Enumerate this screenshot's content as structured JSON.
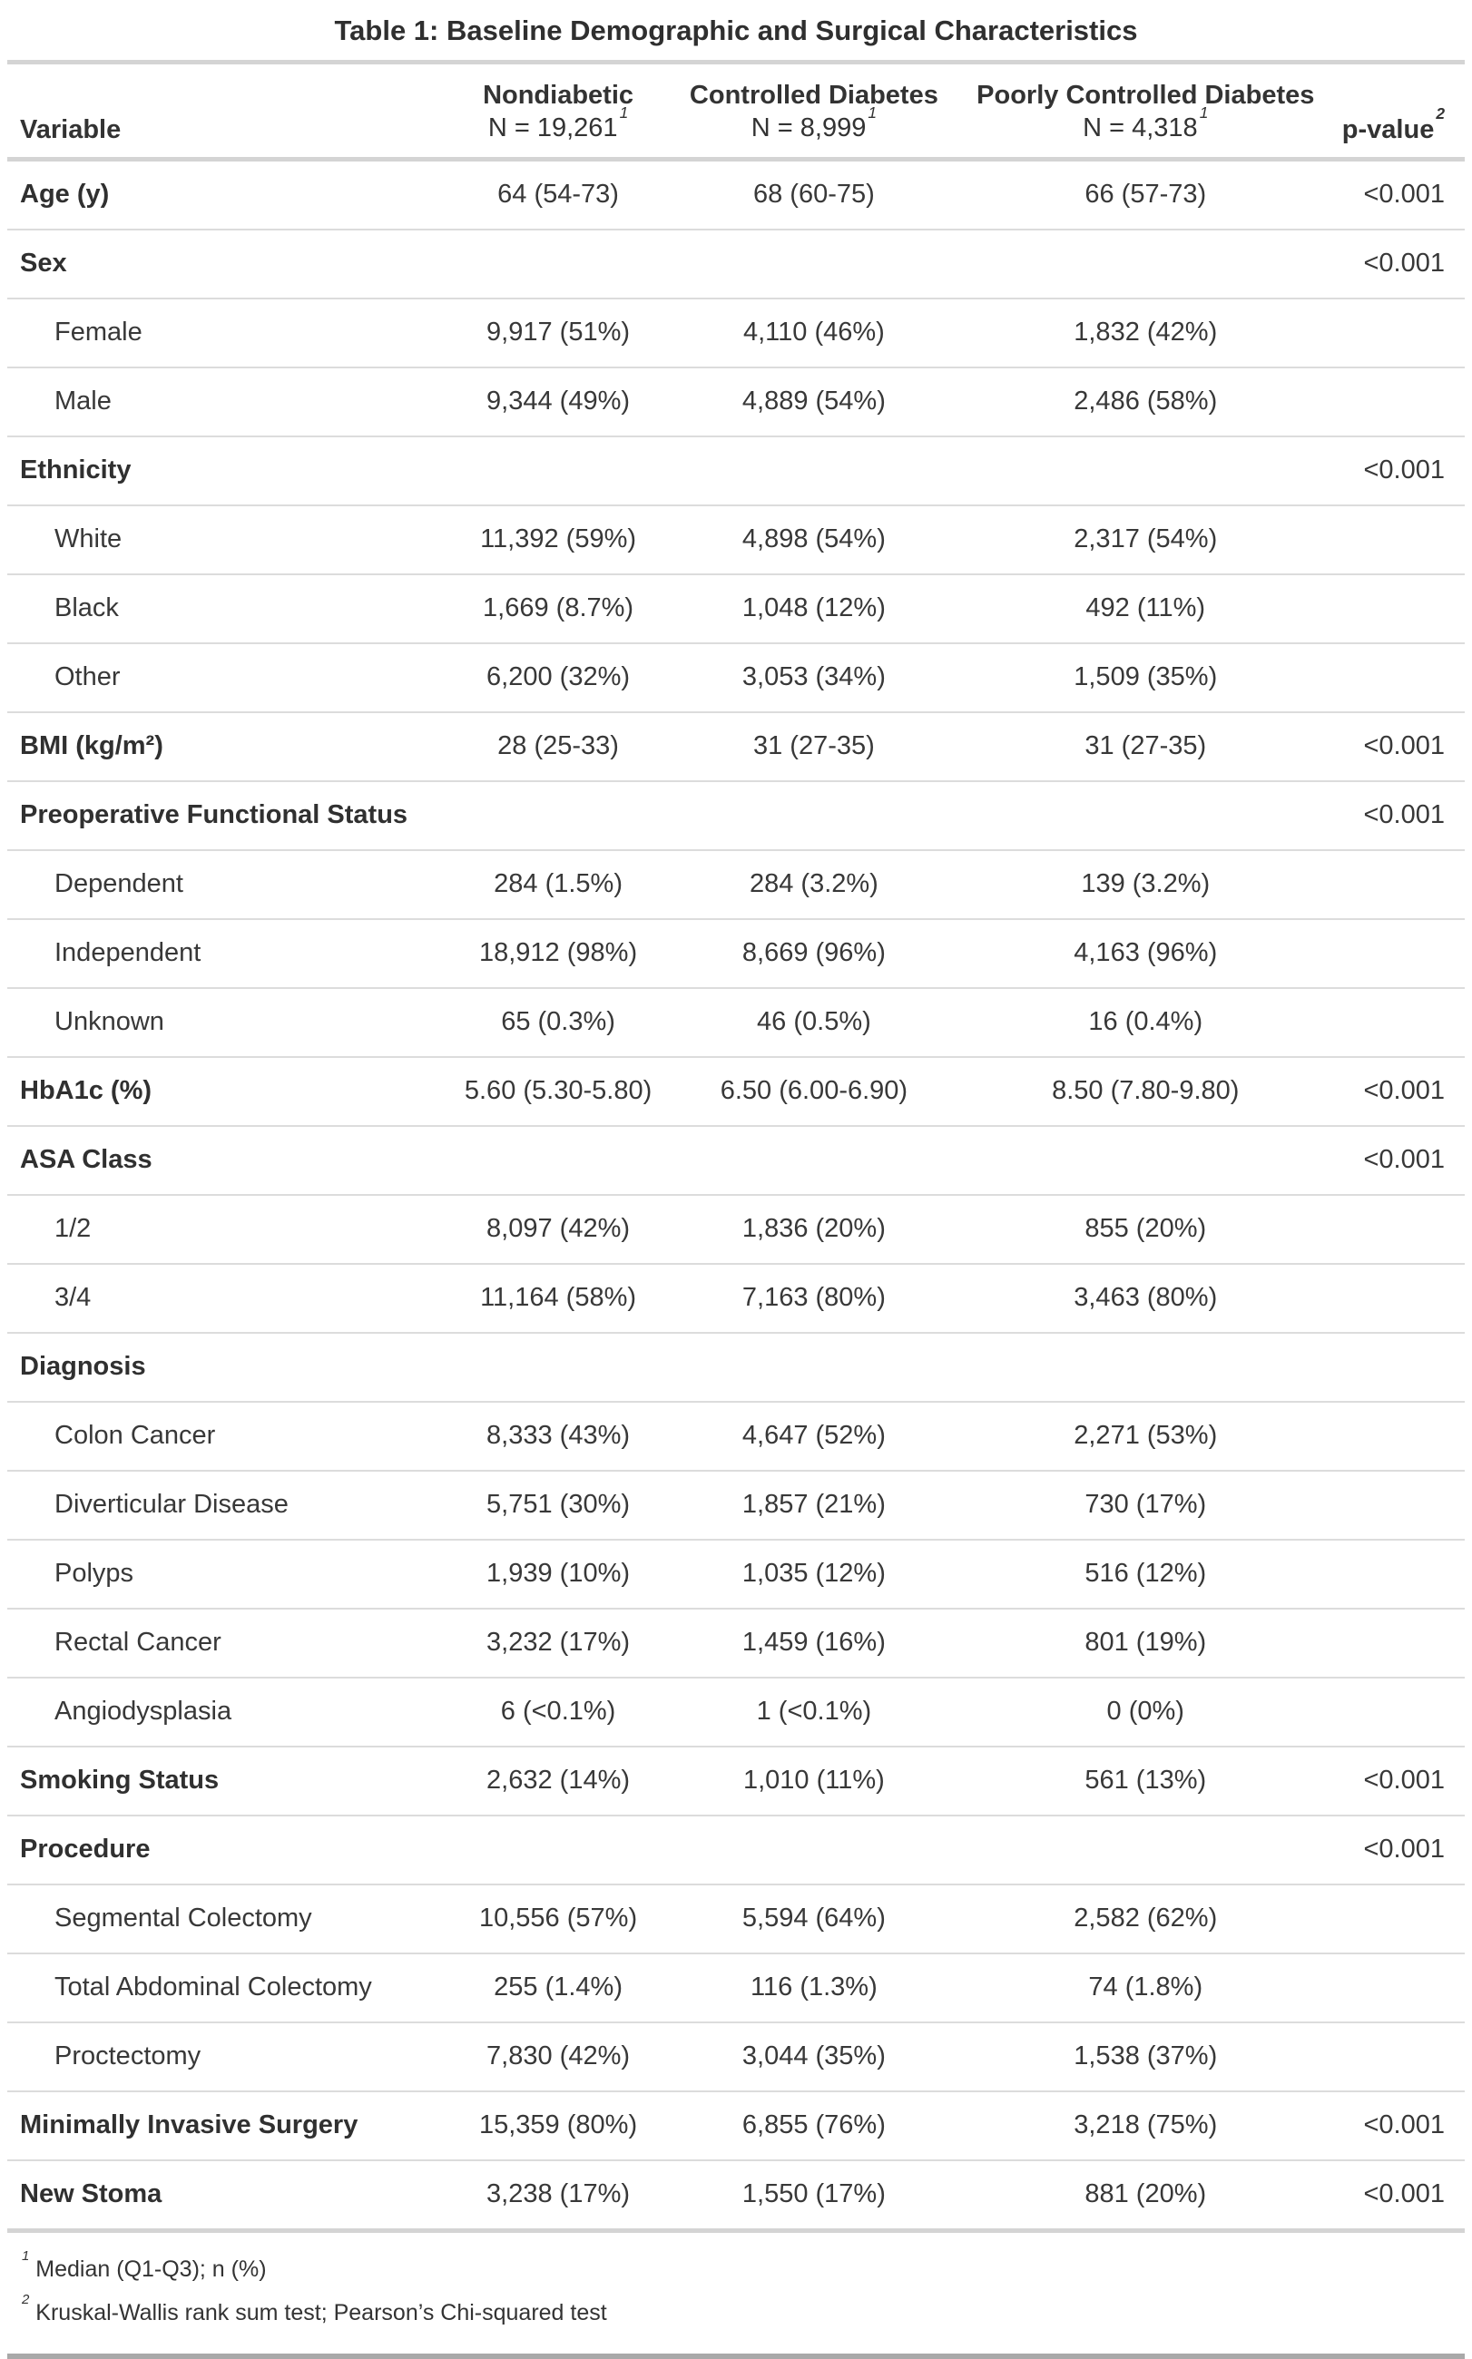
{
  "table": {
    "title": "Table 1: Baseline Demographic and Surgical Characteristics",
    "columns": [
      {
        "label": "Variable"
      },
      {
        "label": "Nondiabetic",
        "n": "N = 19,261",
        "fn": "1"
      },
      {
        "label": "Controlled Diabetes",
        "n": "N = 8,999",
        "fn": "1"
      },
      {
        "label": "Poorly Controlled Diabetes",
        "n": "N = 4,318",
        "fn": "1"
      },
      {
        "label": "p-value",
        "fn": "2"
      }
    ],
    "rows": [
      {
        "label": "Age (y)",
        "indent": false,
        "cells": [
          "64 (54-73)",
          "68 (60-75)",
          "66 (57-73)"
        ],
        "p": "<0.001"
      },
      {
        "label": "Sex",
        "indent": false,
        "cells": [
          "",
          "",
          ""
        ],
        "p": "<0.001"
      },
      {
        "label": "Female",
        "indent": true,
        "cells": [
          "9,917 (51%)",
          "4,110 (46%)",
          "1,832 (42%)"
        ],
        "p": ""
      },
      {
        "label": "Male",
        "indent": true,
        "cells": [
          "9,344 (49%)",
          "4,889 (54%)",
          "2,486 (58%)"
        ],
        "p": ""
      },
      {
        "label": "Ethnicity",
        "indent": false,
        "cells": [
          "",
          "",
          ""
        ],
        "p": "<0.001"
      },
      {
        "label": "White",
        "indent": true,
        "cells": [
          "11,392 (59%)",
          "4,898 (54%)",
          "2,317 (54%)"
        ],
        "p": ""
      },
      {
        "label": "Black",
        "indent": true,
        "cells": [
          "1,669 (8.7%)",
          "1,048 (12%)",
          "492 (11%)"
        ],
        "p": ""
      },
      {
        "label": "Other",
        "indent": true,
        "cells": [
          "6,200 (32%)",
          "3,053 (34%)",
          "1,509 (35%)"
        ],
        "p": ""
      },
      {
        "label": "BMI (kg/m²)",
        "indent": false,
        "cells": [
          "28 (25-33)",
          "31 (27-35)",
          "31 (27-35)"
        ],
        "p": "<0.001"
      },
      {
        "label": "Preoperative Functional Status",
        "indent": false,
        "cells": [
          "",
          "",
          ""
        ],
        "p": "<0.001"
      },
      {
        "label": "Dependent",
        "indent": true,
        "cells": [
          "284 (1.5%)",
          "284 (3.2%)",
          "139 (3.2%)"
        ],
        "p": ""
      },
      {
        "label": "Independent",
        "indent": true,
        "cells": [
          "18,912 (98%)",
          "8,669 (96%)",
          "4,163 (96%)"
        ],
        "p": ""
      },
      {
        "label": "Unknown",
        "indent": true,
        "cells": [
          "65 (0.3%)",
          "46 (0.5%)",
          "16 (0.4%)"
        ],
        "p": ""
      },
      {
        "label": "HbA1c (%)",
        "indent": false,
        "cells": [
          "5.60 (5.30-5.80)",
          "6.50 (6.00-6.90)",
          "8.50 (7.80-9.80)"
        ],
        "p": "<0.001"
      },
      {
        "label": "ASA Class",
        "indent": false,
        "cells": [
          "",
          "",
          ""
        ],
        "p": "<0.001"
      },
      {
        "label": "1/2",
        "indent": true,
        "cells": [
          "8,097 (42%)",
          "1,836 (20%)",
          "855 (20%)"
        ],
        "p": ""
      },
      {
        "label": "3/4",
        "indent": true,
        "cells": [
          "11,164 (58%)",
          "7,163 (80%)",
          "3,463 (80%)"
        ],
        "p": ""
      },
      {
        "label": "Diagnosis",
        "indent": false,
        "cells": [
          "",
          "",
          ""
        ],
        "p": ""
      },
      {
        "label": "Colon Cancer",
        "indent": true,
        "cells": [
          "8,333 (43%)",
          "4,647 (52%)",
          "2,271 (53%)"
        ],
        "p": ""
      },
      {
        "label": "Diverticular Disease",
        "indent": true,
        "cells": [
          "5,751 (30%)",
          "1,857 (21%)",
          "730 (17%)"
        ],
        "p": ""
      },
      {
        "label": "Polyps",
        "indent": true,
        "cells": [
          "1,939 (10%)",
          "1,035 (12%)",
          "516 (12%)"
        ],
        "p": ""
      },
      {
        "label": "Rectal Cancer",
        "indent": true,
        "cells": [
          "3,232 (17%)",
          "1,459 (16%)",
          "801 (19%)"
        ],
        "p": ""
      },
      {
        "label": "Angiodysplasia",
        "indent": true,
        "cells": [
          "6 (<0.1%)",
          "1 (<0.1%)",
          "0 (0%)"
        ],
        "p": ""
      },
      {
        "label": "Smoking Status",
        "indent": false,
        "cells": [
          "2,632 (14%)",
          "1,010 (11%)",
          "561 (13%)"
        ],
        "p": "<0.001"
      },
      {
        "label": "Procedure",
        "indent": false,
        "cells": [
          "",
          "",
          ""
        ],
        "p": "<0.001"
      },
      {
        "label": "Segmental Colectomy",
        "indent": true,
        "cells": [
          "10,556 (57%)",
          "5,594 (64%)",
          "2,582 (62%)"
        ],
        "p": ""
      },
      {
        "label": "Total Abdominal Colectomy",
        "indent": true,
        "cells": [
          "255 (1.4%)",
          "116 (1.3%)",
          "74 (1.8%)"
        ],
        "p": ""
      },
      {
        "label": "Proctectomy",
        "indent": true,
        "cells": [
          "7,830 (42%)",
          "3,044 (35%)",
          "1,538 (37%)"
        ],
        "p": ""
      },
      {
        "label": "Minimally Invasive Surgery",
        "indent": false,
        "cells": [
          "15,359 (80%)",
          "6,855 (76%)",
          "3,218 (75%)"
        ],
        "p": "<0.001"
      },
      {
        "label": "New Stoma",
        "indent": false,
        "cells": [
          "3,238 (17%)",
          "1,550 (17%)",
          "881 (20%)"
        ],
        "p": "<0.001"
      }
    ],
    "footnotes": [
      {
        "mark": "1",
        "text": "Median (Q1-Q3); n (%)"
      },
      {
        "mark": "2",
        "text": "Kruskal-Wallis rank sum test; Pearson’s Chi-squared test"
      }
    ]
  }
}
